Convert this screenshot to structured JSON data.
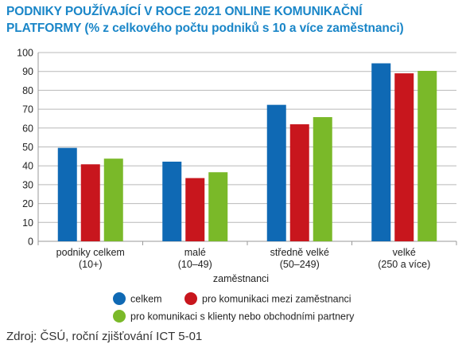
{
  "title": "PODNIKY POUŽÍVAJÍCÍ V ROCE 2021 ONLINE KOMUNIKAČNÍ",
  "subtitle_bold": "PLATFORMY",
  "subtitle_rest": " (% z celkového počtu podniků s 10 a více zaměstnanci)",
  "source": "Zdroj: ČSÚ, roční zjišťování ICT 5-01",
  "colors": {
    "celkem": "#0f69b4",
    "mezi_zamestnanci": "#c8161d",
    "s_klienty": "#7ab929"
  },
  "chart_data": {
    "type": "bar",
    "categories": [
      [
        "podniky celkem",
        "(10+)"
      ],
      [
        "malé",
        "(10–49)"
      ],
      [
        "středně velké",
        "(50–249)"
      ],
      [
        "velké",
        "(250 a více)"
      ]
    ],
    "xlabel": "zaměstnanci",
    "ylabel": "",
    "ylim": [
      0,
      100
    ],
    "yticks": [
      0,
      10,
      20,
      30,
      40,
      50,
      60,
      70,
      80,
      90,
      100
    ],
    "grid": true,
    "legend_position": "bottom",
    "series": [
      {
        "name": "celkem",
        "values": [
          49.5,
          42.2,
          72.3,
          94.3
        ]
      },
      {
        "name": "pro komunikaci mezi zaměstnanci",
        "values": [
          40.8,
          33.5,
          62.0,
          89.0
        ]
      },
      {
        "name": "pro komunikaci s klienty nebo obchodními partnery",
        "values": [
          43.8,
          36.6,
          65.8,
          90.3
        ]
      }
    ]
  }
}
